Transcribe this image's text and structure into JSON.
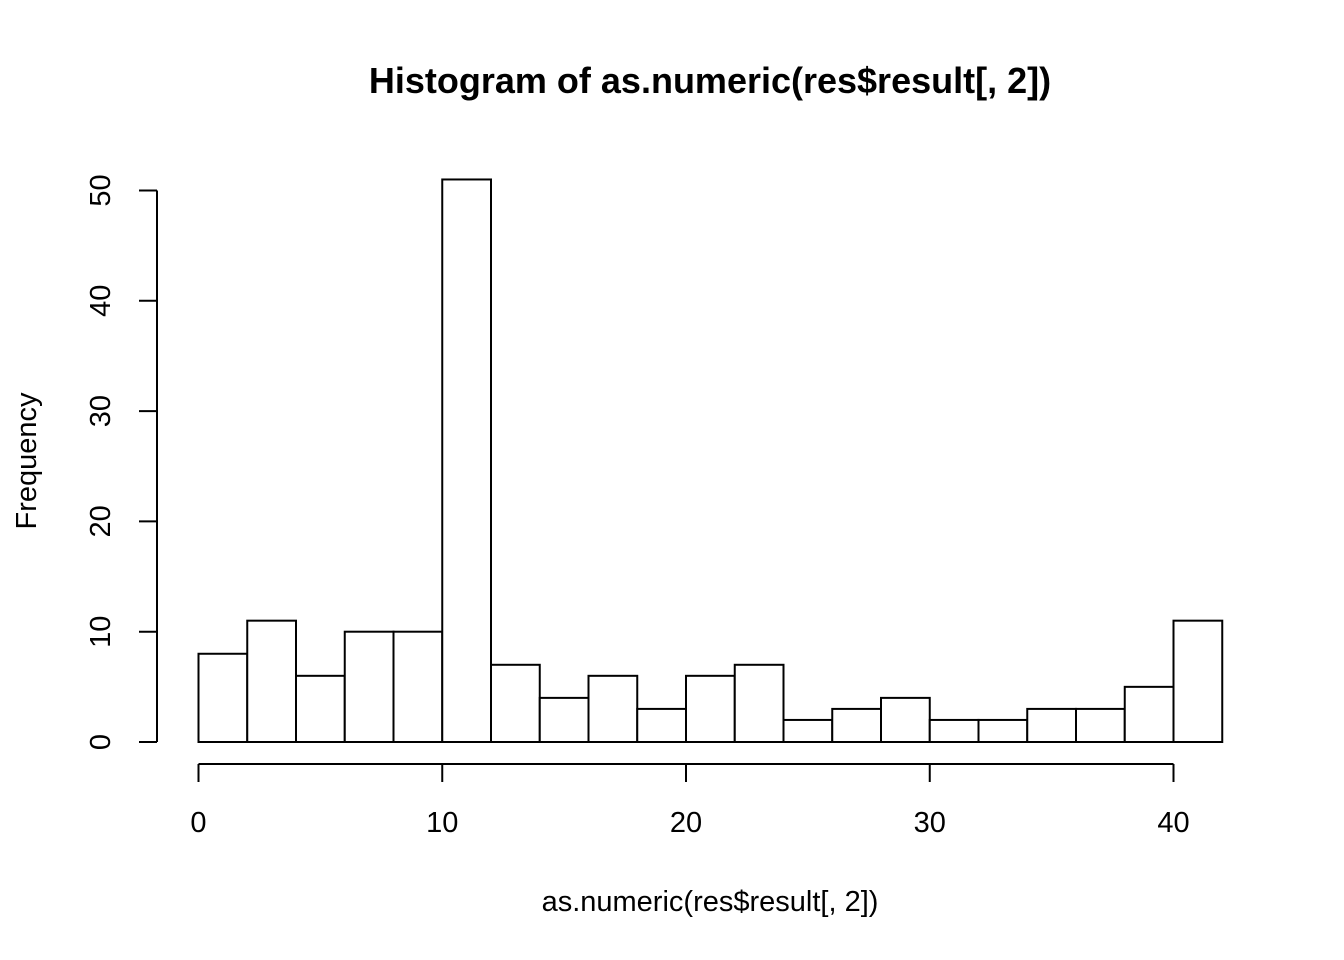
{
  "chart_data": {
    "type": "bar",
    "title": "Histogram of as.numeric(res$result[, 2])",
    "xlabel": "as.numeric(res$result[, 2])",
    "ylabel": "Frequency",
    "bin_width": 2,
    "bins": [
      {
        "start": 0,
        "end": 2,
        "count": 8
      },
      {
        "start": 2,
        "end": 4,
        "count": 11
      },
      {
        "start": 4,
        "end": 6,
        "count": 6
      },
      {
        "start": 6,
        "end": 8,
        "count": 10
      },
      {
        "start": 8,
        "end": 10,
        "count": 10
      },
      {
        "start": 10,
        "end": 12,
        "count": 51
      },
      {
        "start": 12,
        "end": 14,
        "count": 7
      },
      {
        "start": 14,
        "end": 16,
        "count": 4
      },
      {
        "start": 16,
        "end": 18,
        "count": 6
      },
      {
        "start": 18,
        "end": 20,
        "count": 3
      },
      {
        "start": 20,
        "end": 22,
        "count": 6
      },
      {
        "start": 22,
        "end": 24,
        "count": 7
      },
      {
        "start": 24,
        "end": 26,
        "count": 2
      },
      {
        "start": 26,
        "end": 28,
        "count": 3
      },
      {
        "start": 28,
        "end": 30,
        "count": 4
      },
      {
        "start": 30,
        "end": 32,
        "count": 2
      },
      {
        "start": 32,
        "end": 34,
        "count": 2
      },
      {
        "start": 34,
        "end": 36,
        "count": 3
      },
      {
        "start": 36,
        "end": 38,
        "count": 3
      },
      {
        "start": 38,
        "end": 40,
        "count": 5
      },
      {
        "start": 40,
        "end": 42,
        "count": 11
      }
    ],
    "xlim": [
      0,
      42
    ],
    "ylim": [
      0,
      51
    ],
    "x_ticks": [
      0,
      10,
      20,
      30,
      40
    ],
    "y_ticks": [
      0,
      10,
      20,
      30,
      40,
      50
    ],
    "grid": false,
    "bar_fill": "#ffffff",
    "bar_stroke": "#000000"
  }
}
